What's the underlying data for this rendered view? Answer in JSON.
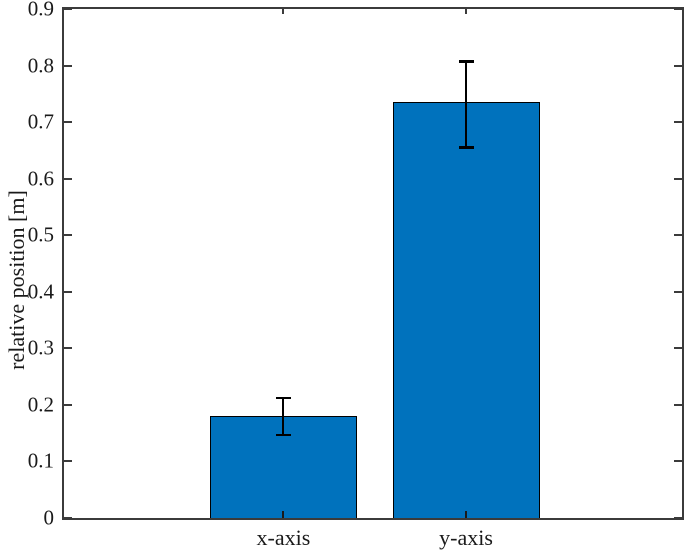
{
  "chart_data": {
    "type": "bar",
    "title": "",
    "xlabel": "",
    "ylabel": "relative position [m]",
    "categories": [
      "x-axis",
      "y-axis"
    ],
    "values": [
      0.18,
      0.735
    ],
    "error_low": [
      0.146,
      0.655
    ],
    "error_high": [
      0.213,
      0.808
    ],
    "ylim": [
      0,
      0.9
    ],
    "ytick_labels": [
      "0",
      "0.1",
      "0.2",
      "0.3",
      "0.4",
      "0.5",
      "0.6",
      "0.7",
      "0.8",
      "0.9"
    ],
    "grid": false,
    "legend": null,
    "box": true,
    "colors": {
      "bar_fill": "#0072BD",
      "bar_edge": "#000000",
      "error_bar": "#000000",
      "axis": "#3b3b3b",
      "background": "#FFFFFF"
    }
  }
}
